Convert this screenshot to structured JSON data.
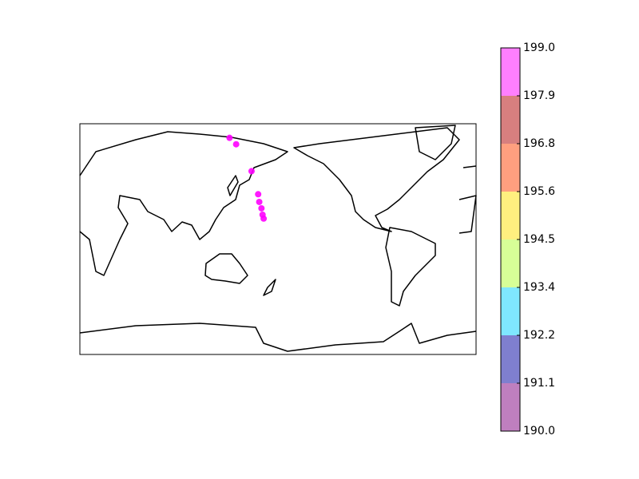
{
  "chart_data": {
    "type": "scatter",
    "x": [
      136,
      142,
      156,
      162,
      163,
      165,
      166,
      167
    ],
    "y": [
      79,
      74,
      53,
      35,
      29,
      24,
      19,
      16
    ],
    "values": [
      198.6,
      198.8,
      198.7,
      198.2,
      198.6,
      198.7,
      198.8,
      198.9
    ],
    "xlim": [
      0,
      360
    ],
    "ylim": [
      -90,
      90
    ],
    "colorbar": {
      "ticks": [
        {
          "value": 190.0,
          "label": "190.0"
        },
        {
          "value": 191.125,
          "label": "191.1"
        },
        {
          "value": 192.25,
          "label": "192.2"
        },
        {
          "value": 193.375,
          "label": "193.4"
        },
        {
          "value": 194.5,
          "label": "194.5"
        },
        {
          "value": 195.625,
          "label": "195.6"
        },
        {
          "value": 196.75,
          "label": "196.8"
        },
        {
          "value": 197.875,
          "label": "197.9"
        },
        {
          "value": 199.0,
          "label": "199.0"
        }
      ],
      "colors": [
        "#800080",
        "#0000a0",
        "#00d0ff",
        "#b0ff30",
        "#ffe000",
        "#ff4000",
        "#b00000",
        "#ff00ff"
      ]
    }
  }
}
